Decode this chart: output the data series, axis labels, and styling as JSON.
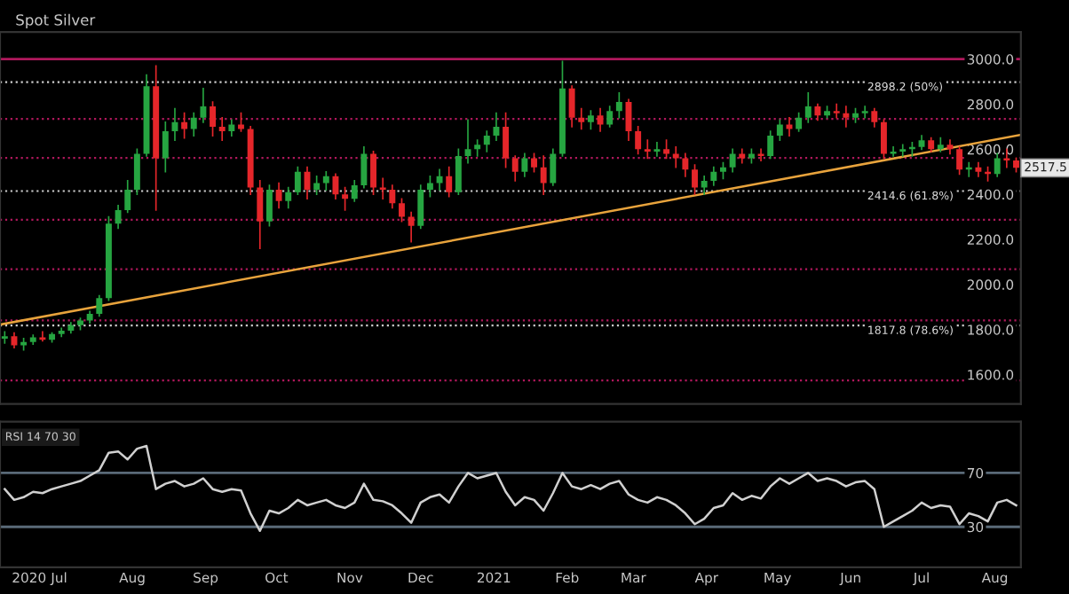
{
  "chart_data": [
    {
      "type": "candlestick",
      "title": "Spot Silver",
      "x": [
        "2020-06-08",
        "2020-06-12",
        "2020-06-16",
        "2020-06-20",
        "2020-06-24",
        "2020-06-28",
        "2020-07-02",
        "2020-07-06",
        "2020-07-10",
        "2020-07-14",
        "2020-07-18",
        "2020-07-22",
        "2020-07-26",
        "2020-07-30",
        "2020-08-03",
        "2020-08-07",
        "2020-08-11",
        "2020-08-15",
        "2020-08-19",
        "2020-08-23",
        "2020-08-27",
        "2020-08-31",
        "2020-09-04",
        "2020-09-08",
        "2020-09-12",
        "2020-09-16",
        "2020-09-20",
        "2020-09-24",
        "2020-09-28",
        "2020-10-02",
        "2020-10-06",
        "2020-10-10",
        "2020-10-14",
        "2020-10-18",
        "2020-10-22",
        "2020-10-26",
        "2020-10-30",
        "2020-11-03",
        "2020-11-07",
        "2020-11-11",
        "2020-11-15",
        "2020-11-19",
        "2020-11-23",
        "2020-11-27",
        "2020-12-01",
        "2020-12-05",
        "2020-12-09",
        "2020-12-13",
        "2020-12-17",
        "2020-12-21",
        "2020-12-25",
        "2020-12-29",
        "2021-01-02",
        "2021-01-06",
        "2021-01-10",
        "2021-01-14",
        "2021-01-18",
        "2021-01-22",
        "2021-01-26",
        "2021-01-30",
        "2021-02-03",
        "2021-02-07",
        "2021-02-11",
        "2021-02-15",
        "2021-02-19",
        "2021-02-23",
        "2021-02-27",
        "2021-03-03",
        "2021-03-07",
        "2021-03-11",
        "2021-03-15",
        "2021-03-19",
        "2021-03-23",
        "2021-03-27",
        "2021-03-31",
        "2021-04-04",
        "2021-04-08",
        "2021-04-12",
        "2021-04-16",
        "2021-04-20",
        "2021-04-24",
        "2021-04-28",
        "2021-05-02",
        "2021-05-06",
        "2021-05-10",
        "2021-05-14",
        "2021-05-18",
        "2021-05-22",
        "2021-05-26",
        "2021-05-30",
        "2021-06-03",
        "2021-06-07",
        "2021-06-11",
        "2021-06-15",
        "2021-06-19",
        "2021-06-23",
        "2021-06-27",
        "2021-07-01",
        "2021-07-05",
        "2021-07-09",
        "2021-07-13",
        "2021-07-17",
        "2021-07-21",
        "2021-07-25",
        "2021-07-29",
        "2021-08-02",
        "2021-08-06",
        "2021-08-10"
      ],
      "ohlc": [
        [
          1760,
          1790,
          1740,
          1770
        ],
        [
          1770,
          1785,
          1720,
          1730
        ],
        [
          1730,
          1760,
          1710,
          1745
        ],
        [
          1745,
          1775,
          1735,
          1765
        ],
        [
          1765,
          1790,
          1750,
          1755
        ],
        [
          1755,
          1785,
          1745,
          1780
        ],
        [
          1780,
          1805,
          1770,
          1795
        ],
        [
          1795,
          1830,
          1785,
          1820
        ],
        [
          1820,
          1850,
          1800,
          1840
        ],
        [
          1840,
          1880,
          1830,
          1870
        ],
        [
          1870,
          1950,
          1860,
          1940
        ],
        [
          1940,
          2300,
          1930,
          2270
        ],
        [
          2270,
          2350,
          2250,
          2330
        ],
        [
          2330,
          2460,
          2320,
          2420
        ],
        [
          2420,
          2600,
          2400,
          2580
        ],
        [
          2580,
          2930,
          2570,
          2880
        ],
        [
          2880,
          2970,
          2330,
          2560
        ],
        [
          2560,
          2720,
          2500,
          2680
        ],
        [
          2680,
          2780,
          2640,
          2720
        ],
        [
          2720,
          2760,
          2650,
          2690
        ],
        [
          2690,
          2760,
          2660,
          2740
        ],
        [
          2740,
          2870,
          2720,
          2790
        ],
        [
          2790,
          2810,
          2660,
          2700
        ],
        [
          2700,
          2740,
          2640,
          2680
        ],
        [
          2680,
          2730,
          2660,
          2710
        ],
        [
          2710,
          2760,
          2680,
          2690
        ],
        [
          2690,
          2700,
          2400,
          2430
        ],
        [
          2430,
          2460,
          2160,
          2280
        ],
        [
          2280,
          2440,
          2260,
          2420
        ],
        [
          2420,
          2450,
          2340,
          2370
        ],
        [
          2370,
          2430,
          2340,
          2410
        ],
        [
          2410,
          2520,
          2400,
          2500
        ],
        [
          2500,
          2520,
          2380,
          2420
        ],
        [
          2420,
          2480,
          2400,
          2450
        ],
        [
          2450,
          2500,
          2420,
          2480
        ],
        [
          2480,
          2490,
          2380,
          2400
        ],
        [
          2400,
          2430,
          2330,
          2380
        ],
        [
          2380,
          2460,
          2370,
          2440
        ],
        [
          2440,
          2610,
          2430,
          2580
        ],
        [
          2580,
          2590,
          2400,
          2430
        ],
        [
          2430,
          2470,
          2380,
          2420
        ],
        [
          2420,
          2440,
          2340,
          2360
        ],
        [
          2360,
          2380,
          2280,
          2300
        ],
        [
          2300,
          2320,
          2190,
          2260
        ],
        [
          2260,
          2440,
          2250,
          2420
        ],
        [
          2420,
          2480,
          2390,
          2450
        ],
        [
          2450,
          2510,
          2420,
          2480
        ],
        [
          2480,
          2520,
          2390,
          2410
        ],
        [
          2410,
          2600,
          2400,
          2570
        ],
        [
          2570,
          2730,
          2540,
          2600
        ],
        [
          2600,
          2640,
          2570,
          2620
        ],
        [
          2620,
          2680,
          2590,
          2660
        ],
        [
          2660,
          2760,
          2640,
          2700
        ],
        [
          2700,
          2760,
          2520,
          2560
        ],
        [
          2560,
          2570,
          2460,
          2500
        ],
        [
          2500,
          2580,
          2480,
          2560
        ],
        [
          2560,
          2580,
          2500,
          2520
        ],
        [
          2520,
          2570,
          2400,
          2450
        ],
        [
          2450,
          2600,
          2440,
          2580
        ],
        [
          2580,
          2990,
          2570,
          2870
        ],
        [
          2870,
          2880,
          2700,
          2740
        ],
        [
          2740,
          2780,
          2690,
          2720
        ],
        [
          2720,
          2770,
          2690,
          2750
        ],
        [
          2750,
          2780,
          2680,
          2710
        ],
        [
          2710,
          2790,
          2700,
          2770
        ],
        [
          2770,
          2850,
          2740,
          2810
        ],
        [
          2810,
          2820,
          2640,
          2680
        ],
        [
          2680,
          2700,
          2580,
          2600
        ],
        [
          2600,
          2640,
          2560,
          2590
        ],
        [
          2590,
          2630,
          2570,
          2600
        ],
        [
          2600,
          2640,
          2560,
          2580
        ],
        [
          2580,
          2610,
          2520,
          2560
        ],
        [
          2560,
          2580,
          2480,
          2510
        ],
        [
          2510,
          2530,
          2400,
          2430
        ],
        [
          2430,
          2480,
          2400,
          2460
        ],
        [
          2460,
          2520,
          2440,
          2500
        ],
        [
          2500,
          2540,
          2470,
          2520
        ],
        [
          2520,
          2600,
          2500,
          2580
        ],
        [
          2580,
          2600,
          2540,
          2560
        ],
        [
          2560,
          2600,
          2540,
          2580
        ],
        [
          2580,
          2600,
          2550,
          2570
        ],
        [
          2570,
          2680,
          2560,
          2660
        ],
        [
          2660,
          2730,
          2640,
          2710
        ],
        [
          2710,
          2740,
          2660,
          2690
        ],
        [
          2690,
          2760,
          2680,
          2740
        ],
        [
          2740,
          2850,
          2720,
          2790
        ],
        [
          2790,
          2800,
          2730,
          2750
        ],
        [
          2750,
          2790,
          2740,
          2770
        ],
        [
          2770,
          2800,
          2740,
          2760
        ],
        [
          2760,
          2790,
          2700,
          2740
        ],
        [
          2740,
          2780,
          2720,
          2760
        ],
        [
          2760,
          2790,
          2740,
          2770
        ],
        [
          2770,
          2780,
          2700,
          2720
        ],
        [
          2720,
          2730,
          2560,
          2580
        ],
        [
          2580,
          2610,
          2570,
          2590
        ],
        [
          2590,
          2620,
          2570,
          2600
        ],
        [
          2600,
          2630,
          2570,
          2610
        ],
        [
          2610,
          2660,
          2600,
          2640
        ],
        [
          2640,
          2650,
          2590,
          2600
        ],
        [
          2600,
          2650,
          2590,
          2620
        ],
        [
          2620,
          2640,
          2580,
          2600
        ],
        [
          2600,
          2610,
          2490,
          2510
        ],
        [
          2510,
          2540,
          2480,
          2520
        ],
        [
          2520,
          2540,
          2480,
          2500
        ],
        [
          2500,
          2520,
          2460,
          2490
        ],
        [
          2490,
          2580,
          2480,
          2560
        ],
        [
          2560,
          2600,
          2520,
          2550
        ],
        [
          2550,
          2560,
          2500,
          2517.5
        ]
      ],
      "colors": [
        "#26a541",
        "#e5262a",
        "#26a541",
        "#26a541",
        "#e5262a",
        "#26a541",
        "#26a541",
        "#26a541",
        "#26a541",
        "#26a541",
        "#26a541",
        "#26a541",
        "#26a541",
        "#26a541",
        "#26a541",
        "#26a541",
        "#e5262a",
        "#26a541",
        "#26a541",
        "#e5262a",
        "#26a541",
        "#26a541",
        "#e5262a",
        "#e5262a",
        "#26a541",
        "#e5262a",
        "#e5262a",
        "#e5262a",
        "#26a541",
        "#e5262a",
        "#26a541",
        "#26a541",
        "#e5262a",
        "#26a541",
        "#26a541",
        "#e5262a",
        "#e5262a",
        "#26a541",
        "#26a541",
        "#e5262a",
        "#e5262a",
        "#e5262a",
        "#e5262a",
        "#e5262a",
        "#26a541",
        "#26a541",
        "#26a541",
        "#e5262a",
        "#26a541",
        "#26a541",
        "#26a541",
        "#26a541",
        "#26a541",
        "#e5262a",
        "#e5262a",
        "#26a541",
        "#e5262a",
        "#e5262a",
        "#26a541",
        "#26a541",
        "#e5262a",
        "#e5262a",
        "#26a541",
        "#e5262a",
        "#26a541",
        "#26a541",
        "#e5262a",
        "#e5262a",
        "#e5262a",
        "#26a541",
        "#e5262a",
        "#e5262a",
        "#e5262a",
        "#e5262a",
        "#26a541",
        "#26a541",
        "#26a541",
        "#26a541",
        "#e5262a",
        "#26a541",
        "#e5262a",
        "#26a541",
        "#26a541",
        "#e5262a",
        "#26a541",
        "#26a541",
        "#e5262a",
        "#26a541",
        "#e5262a",
        "#e5262a",
        "#26a541",
        "#26a541",
        "#e5262a",
        "#e5262a",
        "#26a541",
        "#26a541",
        "#26a541",
        "#26a541",
        "#e5262a",
        "#26a541",
        "#e5262a",
        "#e5262a",
        "#26a541",
        "#e5262a",
        "#e5262a",
        "#26a541",
        "#e5262a",
        "#e5262a"
      ],
      "series": [
        {
          "type": "line",
          "color": "#e8a33c",
          "x": [
            "2020-06-06",
            "2021-08-12"
          ],
          "values": [
            1822,
            2664
          ]
        }
      ],
      "xlim": [
        "2020-06-06",
        "2021-08-12"
      ],
      "ylim": [
        1470,
        3120
      ],
      "yticks": [
        {
          "value": 1600,
          "label": "1600.0"
        },
        {
          "value": 1800,
          "label": "1800.0"
        },
        {
          "value": 2000,
          "label": "2000.0"
        },
        {
          "value": 2200,
          "label": "2200.0"
        },
        {
          "value": 2400,
          "label": "2400.0"
        },
        {
          "value": 2600,
          "label": "2600.0"
        },
        {
          "value": 2800,
          "label": "2800.0"
        },
        {
          "value": 3000,
          "label": "3000.0"
        }
      ],
      "ref_lines": [
        {
          "axis": "y",
          "value": 3000,
          "color": "#b0185c",
          "line_style": "solid"
        },
        {
          "axis": "y",
          "value": 2735,
          "color": "#b0185c",
          "line_style": "dotted"
        },
        {
          "axis": "y",
          "value": 2562,
          "color": "#b0185c",
          "line_style": "dotted"
        },
        {
          "axis": "y",
          "value": 2287,
          "color": "#b0185c",
          "line_style": "dotted"
        },
        {
          "axis": "y",
          "value": 2068,
          "color": "#b0185c",
          "line_style": "dotted"
        },
        {
          "axis": "y",
          "value": 1841,
          "color": "#b0185c",
          "line_style": "dotted"
        },
        {
          "axis": "y",
          "value": 1574,
          "color": "#b0185c",
          "line_style": "dotted"
        },
        {
          "axis": "y",
          "value": 2898.2,
          "label": "2898.2 (50%)",
          "color": "#cccccc",
          "line_style": "dotted"
        },
        {
          "axis": "y",
          "value": 2414.6,
          "label": "2414.6 (61.8%)",
          "color": "#cccccc",
          "line_style": "dotted"
        },
        {
          "axis": "y",
          "value": 1817.8,
          "label": "1817.8 (78.6%)",
          "color": "#cccccc",
          "line_style": "dotted"
        }
      ],
      "annotations": [
        {
          "text": "2517.5",
          "x": "2021-08-10",
          "y": 2517.5
        }
      ],
      "tick_labels": "y",
      "grid": false,
      "legend": false
    },
    {
      "type": "line",
      "x": [
        "2020-06-08",
        "2020-06-12",
        "2020-06-16",
        "2020-06-20",
        "2020-06-24",
        "2020-06-28",
        "2020-07-02",
        "2020-07-06",
        "2020-07-10",
        "2020-07-14",
        "2020-07-18",
        "2020-07-22",
        "2020-07-26",
        "2020-07-30",
        "2020-08-03",
        "2020-08-07",
        "2020-08-11",
        "2020-08-15",
        "2020-08-19",
        "2020-08-23",
        "2020-08-27",
        "2020-08-31",
        "2020-09-04",
        "2020-09-08",
        "2020-09-12",
        "2020-09-16",
        "2020-09-20",
        "2020-09-24",
        "2020-09-28",
        "2020-10-02",
        "2020-10-06",
        "2020-10-10",
        "2020-10-14",
        "2020-10-18",
        "2020-10-22",
        "2020-10-26",
        "2020-10-30",
        "2020-11-03",
        "2020-11-07",
        "2020-11-11",
        "2020-11-15",
        "2020-11-19",
        "2020-11-23",
        "2020-11-27",
        "2020-12-01",
        "2020-12-05",
        "2020-12-09",
        "2020-12-13",
        "2020-12-17",
        "2020-12-21",
        "2020-12-25",
        "2020-12-29",
        "2021-01-02",
        "2021-01-06",
        "2021-01-10",
        "2021-01-14",
        "2021-01-18",
        "2021-01-22",
        "2021-01-26",
        "2021-01-30",
        "2021-02-03",
        "2021-02-07",
        "2021-02-11",
        "2021-02-15",
        "2021-02-19",
        "2021-02-23",
        "2021-02-27",
        "2021-03-03",
        "2021-03-07",
        "2021-03-11",
        "2021-03-15",
        "2021-03-19",
        "2021-03-23",
        "2021-03-27",
        "2021-03-31",
        "2021-04-04",
        "2021-04-08",
        "2021-04-12",
        "2021-04-16",
        "2021-04-20",
        "2021-04-24",
        "2021-04-28",
        "2021-05-02",
        "2021-05-06",
        "2021-05-10",
        "2021-05-14",
        "2021-05-18",
        "2021-05-22",
        "2021-05-26",
        "2021-05-30",
        "2021-06-03",
        "2021-06-07",
        "2021-06-11",
        "2021-06-15",
        "2021-06-19",
        "2021-06-23",
        "2021-06-27",
        "2021-07-01",
        "2021-07-05",
        "2021-07-09",
        "2021-07-13",
        "2021-07-17",
        "2021-07-21",
        "2021-07-25",
        "2021-07-29",
        "2021-08-02",
        "2021-08-06",
        "2021-08-10"
      ],
      "series": [
        {
          "color": "#d0d0d0",
          "values": [
            58,
            50,
            52,
            56,
            55,
            58,
            60,
            62,
            64,
            68,
            72,
            85,
            86,
            80,
            88,
            90,
            58,
            62,
            64,
            60,
            62,
            66,
            58,
            56,
            58,
            57,
            40,
            27,
            42,
            40,
            44,
            50,
            46,
            48,
            50,
            46,
            44,
            48,
            62,
            50,
            49,
            46,
            40,
            33,
            48,
            52,
            54,
            48,
            60,
            70,
            66,
            68,
            70,
            56,
            46,
            52,
            50,
            42,
            55,
            70,
            60,
            58,
            61,
            58,
            62,
            64,
            54,
            50,
            48,
            52,
            50,
            46,
            40,
            32,
            36,
            44,
            46,
            55,
            50,
            53,
            51,
            60,
            66,
            62,
            66,
            70,
            64,
            66,
            64,
            60,
            63,
            64,
            58,
            30,
            34,
            38,
            42,
            48,
            44,
            46,
            45,
            32,
            40,
            38,
            34,
            48,
            50,
            46
          ]
        }
      ],
      "xlim": [
        "2020-06-06",
        "2021-08-12"
      ],
      "ylim": [
        0,
        108
      ],
      "yticks": [
        30,
        70
      ],
      "xticks": [
        {
          "value": "2020-06-11",
          "label": "2020"
        },
        {
          "value": "2020-07-01",
          "label": "Jul"
        },
        {
          "value": "2020-08-01",
          "label": "Aug"
        },
        {
          "value": "2020-09-01",
          "label": "Sep"
        },
        {
          "value": "2020-10-01",
          "label": "Oct"
        },
        {
          "value": "2020-11-01",
          "label": "Nov"
        },
        {
          "value": "2020-12-01",
          "label": "Dec"
        },
        {
          "value": "2021-01-01",
          "label": "2021"
        },
        {
          "value": "2021-02-01",
          "label": "Feb"
        },
        {
          "value": "2021-03-01",
          "label": "Mar"
        },
        {
          "value": "2021-04-01",
          "label": "Apr"
        },
        {
          "value": "2021-05-01",
          "label": "May"
        },
        {
          "value": "2021-06-01",
          "label": "Jun"
        },
        {
          "value": "2021-07-01",
          "label": "Jul"
        },
        {
          "value": "2021-08-01",
          "label": "Aug"
        }
      ],
      "ref_lines": [
        {
          "axis": "y",
          "value": 70,
          "color": "#5a6a78",
          "line_style": "solid"
        },
        {
          "axis": "y",
          "value": 30,
          "color": "#5a6a78",
          "line_style": "solid"
        }
      ],
      "annotations": [
        "RSI 14 70 30"
      ],
      "grid": false,
      "legend": false,
      "marker": "none",
      "line_style": "solid"
    }
  ]
}
